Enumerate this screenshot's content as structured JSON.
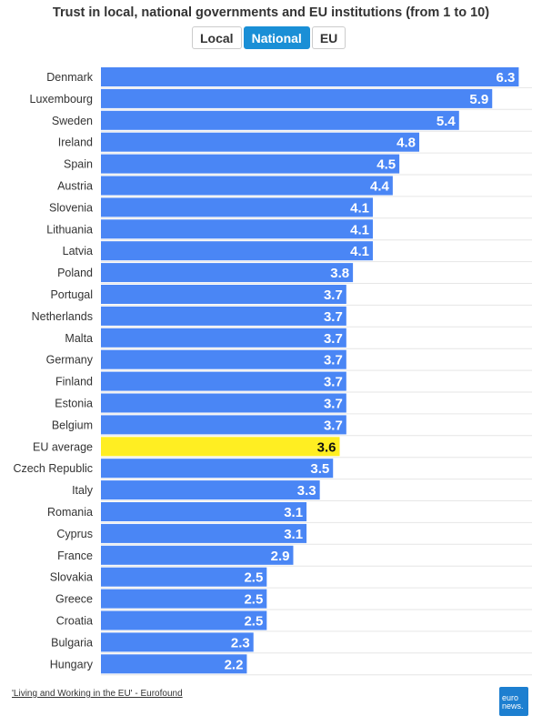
{
  "title": "Trust in local, national governments and EU institutions (from 1 to 10)",
  "tabs": [
    {
      "label": "Local",
      "active": false
    },
    {
      "label": "National",
      "active": true
    },
    {
      "label": "EU",
      "active": false
    }
  ],
  "source": "'Living and Working in the EU' - Eurofound",
  "logo": {
    "line1": "euro",
    "line2": "news."
  },
  "colors": {
    "bar": "#4a86f5",
    "highlight": "#ffee22",
    "grid": "#e6e6e6",
    "tab_active": "#1a8fd6",
    "logo": "#1d7fd0"
  },
  "chart_data": {
    "type": "bar",
    "orientation": "horizontal",
    "categories": [
      "Denmark",
      "Luxembourg",
      "Sweden",
      "Ireland",
      "Spain",
      "Austria",
      "Slovenia",
      "Lithuania",
      "Latvia",
      "Poland",
      "Portugal",
      "Netherlands",
      "Malta",
      "Germany",
      "Finland",
      "Estonia",
      "Belgium",
      "EU average",
      "Czech Republic",
      "Italy",
      "Romania",
      "Cyprus",
      "France",
      "Slovakia",
      "Greece",
      "Croatia",
      "Bulgaria",
      "Hungary"
    ],
    "values": [
      6.3,
      5.9,
      5.4,
      4.8,
      4.5,
      4.4,
      4.1,
      4.1,
      4.1,
      3.8,
      3.7,
      3.7,
      3.7,
      3.7,
      3.7,
      3.7,
      3.7,
      3.6,
      3.5,
      3.3,
      3.1,
      3.1,
      2.9,
      2.5,
      2.5,
      2.5,
      2.3,
      2.2
    ],
    "highlight": "EU average",
    "xlim": [
      0,
      6.5
    ],
    "grid": true,
    "data_labels": true
  }
}
